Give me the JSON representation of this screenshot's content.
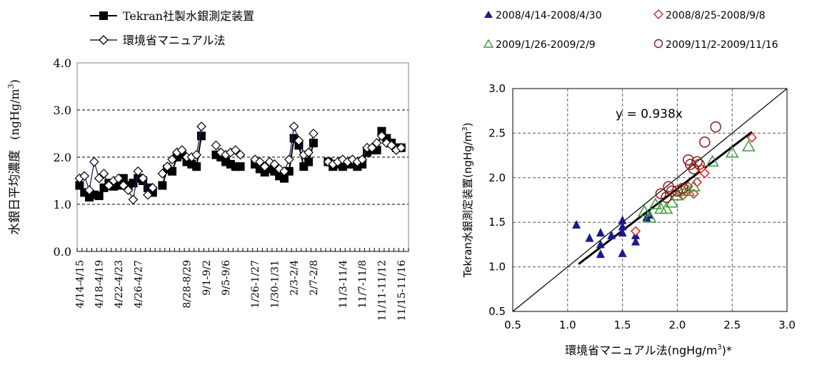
{
  "chart_data": [
    {
      "type": "line",
      "ylabel": "水銀日平均濃度",
      "ylabel_unit": "(ngHg/m",
      "ylabel_unit_sup": "3",
      "ylabel_unit_close": ")",
      "ylim": [
        0,
        4
      ],
      "yticks": [
        "0.0",
        "1.0",
        "2.0",
        "3.0",
        "4.0"
      ],
      "xtick_labels": [
        "4/14-4/15",
        "4/18-4/19",
        "4/22-4/23",
        "4/26-4/27",
        "8/28-8/29",
        "9/1-9/2",
        "9/5-9/6",
        "1/26-1/27",
        "1/30-1/31",
        "2/3-2/4",
        "2/7-2/8",
        "11/3-11/4",
        "11/7-11/8",
        "11/11-11/12",
        "11/15-11/16"
      ],
      "xtick_positions": [
        0,
        4,
        8,
        12,
        22,
        26,
        30,
        36,
        40,
        44,
        48,
        54,
        58,
        62,
        66
      ],
      "n_slots": 68,
      "grid": "horizontal dashed",
      "legend_position": "top",
      "series": [
        {
          "name": "Tekran社製水銀測定装置",
          "color": "#000000",
          "marker": "filled-square",
          "segments": [
            [
              [
                0,
                1.4
              ],
              [
                1,
                1.25
              ],
              [
                2,
                1.15
              ],
              [
                3,
                1.2
              ],
              [
                4,
                1.18
              ],
              [
                5,
                1.35
              ],
              [
                6,
                1.45
              ],
              [
                7,
                1.38
              ],
              [
                8,
                1.4
              ],
              [
                9,
                1.55
              ],
              [
                10,
                1.4
              ],
              [
                11,
                1.45
              ],
              [
                12,
                1.55
              ],
              [
                13,
                1.5
              ],
              [
                14,
                1.35
              ],
              [
                15,
                1.25
              ]
            ],
            [
              [
                17,
                1.4
              ],
              [
                18,
                1.75
              ],
              [
                19,
                1.7
              ],
              [
                20,
                2.0
              ],
              [
                21,
                2.05
              ],
              [
                22,
                1.9
              ],
              [
                23,
                1.85
              ],
              [
                24,
                1.8
              ],
              [
                25,
                2.45
              ]
            ],
            [
              [
                28,
                2.05
              ],
              [
                29,
                2.0
              ],
              [
                30,
                1.9
              ],
              [
                31,
                1.85
              ],
              [
                32,
                1.8
              ],
              [
                33,
                1.8
              ]
            ],
            [
              [
                36,
                1.85
              ],
              [
                37,
                1.75
              ],
              [
                38,
                1.68
              ],
              [
                39,
                1.75
              ],
              [
                40,
                1.7
              ],
              [
                41,
                1.6
              ],
              [
                42,
                1.55
              ],
              [
                43,
                1.7
              ],
              [
                44,
                2.4
              ],
              [
                45,
                2.25
              ],
              [
                46,
                1.8
              ],
              [
                47,
                1.9
              ],
              [
                48,
                2.3
              ]
            ],
            [
              [
                51,
                1.9
              ],
              [
                52,
                1.8
              ],
              [
                53,
                1.85
              ],
              [
                54,
                1.8
              ],
              [
                55,
                1.85
              ],
              [
                56,
                1.85
              ],
              [
                57,
                1.8
              ],
              [
                58,
                1.85
              ],
              [
                59,
                2.1
              ],
              [
                60,
                2.15
              ],
              [
                61,
                2.15
              ],
              [
                62,
                2.55
              ],
              [
                63,
                2.4
              ],
              [
                64,
                2.3
              ],
              [
                65,
                2.2
              ],
              [
                66,
                2.2
              ]
            ]
          ]
        },
        {
          "name": "環境省マニュアル法",
          "color": "#1f1f7a",
          "marker": "open-diamond",
          "segments": [
            [
              [
                0,
                1.55
              ],
              [
                1,
                1.6
              ],
              [
                2,
                1.3
              ],
              [
                3,
                1.9
              ],
              [
                4,
                1.55
              ],
              [
                5,
                1.65
              ],
              [
                6,
                1.4
              ],
              [
                7,
                1.5
              ],
              [
                8,
                1.55
              ],
              [
                9,
                1.4
              ],
              [
                10,
                1.3
              ],
              [
                11,
                1.1
              ],
              [
                12,
                1.7
              ],
              [
                13,
                1.55
              ],
              [
                14,
                1.2
              ],
              [
                15,
                1.35
              ]
            ],
            [
              [
                17,
                1.65
              ],
              [
                18,
                1.8
              ],
              [
                19,
                1.95
              ],
              [
                20,
                2.1
              ],
              [
                21,
                2.15
              ],
              [
                22,
                2.0
              ],
              [
                23,
                2.0
              ],
              [
                24,
                2.05
              ],
              [
                25,
                2.65
              ]
            ],
            [
              [
                28,
                2.25
              ],
              [
                29,
                2.1
              ],
              [
                30,
                2.05
              ],
              [
                31,
                2.1
              ],
              [
                32,
                2.15
              ],
              [
                33,
                2.05
              ]
            ],
            [
              [
                36,
                1.95
              ],
              [
                37,
                1.9
              ],
              [
                38,
                1.8
              ],
              [
                39,
                1.9
              ],
              [
                40,
                1.85
              ],
              [
                41,
                1.75
              ],
              [
                42,
                1.7
              ],
              [
                43,
                1.95
              ],
              [
                44,
                2.65
              ],
              [
                45,
                2.35
              ],
              [
                46,
                2.05
              ],
              [
                47,
                2.1
              ],
              [
                48,
                2.5
              ]
            ],
            [
              [
                51,
                1.9
              ],
              [
                52,
                1.85
              ],
              [
                53,
                1.9
              ],
              [
                54,
                1.95
              ],
              [
                55,
                1.9
              ],
              [
                56,
                1.95
              ],
              [
                57,
                1.9
              ],
              [
                58,
                1.95
              ],
              [
                59,
                2.2
              ],
              [
                60,
                2.2
              ],
              [
                61,
                2.3
              ],
              [
                62,
                2.45
              ],
              [
                63,
                2.3
              ],
              [
                64,
                2.25
              ],
              [
                65,
                2.15
              ],
              [
                66,
                2.2
              ]
            ]
          ]
        }
      ]
    },
    {
      "type": "scatter",
      "xlabel": "環境省マニュアル法(ngHg/m",
      "xlabel_sup": "3",
      "xlabel_close": ")*",
      "ylabel": "Tekran水銀測定装置(ngHg/m",
      "ylabel_sup": "3",
      "ylabel_close": ")",
      "xlim": [
        0.5,
        3.0
      ],
      "ylim": [
        0.5,
        3.0
      ],
      "xticks": [
        "0.5",
        "1.0",
        "1.5",
        "2.0",
        "2.5",
        "3.0"
      ],
      "yticks": [
        "0.5",
        "1.0",
        "1.5",
        "2.0",
        "2.5",
        "3.0"
      ],
      "annotation": "y = 0.938x",
      "regression_slope": 0.938,
      "regression_x_range": [
        1.1,
        2.68
      ],
      "identity_line": true,
      "grid": "dashed",
      "legend_position": "top",
      "series": [
        {
          "name": "2008/4/14-2008/4/30",
          "color": "#1a1a8c",
          "marker": "filled-triangle",
          "points": [
            [
              1.08,
              1.47
            ],
            [
              1.2,
              1.32
            ],
            [
              1.3,
              1.38
            ],
            [
              1.3,
              1.25
            ],
            [
              1.3,
              1.14
            ],
            [
              1.4,
              1.35
            ],
            [
              1.5,
              1.52
            ],
            [
              1.5,
              1.45
            ],
            [
              1.5,
              1.38
            ],
            [
              1.5,
              1.15
            ],
            [
              1.62,
              1.35
            ],
            [
              1.62,
              1.28
            ],
            [
              1.75,
              1.58
            ],
            [
              1.72,
              1.55
            ]
          ]
        },
        {
          "name": "2008/8/25-2008/9/8",
          "color": "#e02020",
          "marker": "open-diamond",
          "points": [
            [
              1.62,
              1.4
            ],
            [
              2.05,
              1.8
            ],
            [
              2.08,
              1.85
            ],
            [
              2.1,
              1.9
            ],
            [
              2.15,
              1.82
            ],
            [
              2.18,
              1.95
            ],
            [
              2.22,
              2.1
            ],
            [
              2.25,
              2.05
            ],
            [
              2.68,
              2.45
            ]
          ]
        },
        {
          "name": "2009/1/26-2009/2/9",
          "color": "#3a9a3a",
          "marker": "open-triangle",
          "points": [
            [
              1.7,
              1.62
            ],
            [
              1.75,
              1.55
            ],
            [
              1.8,
              1.7
            ],
            [
              1.85,
              1.65
            ],
            [
              1.9,
              1.65
            ],
            [
              1.95,
              1.72
            ],
            [
              2.0,
              1.8
            ],
            [
              2.05,
              1.85
            ],
            [
              2.1,
              1.85
            ],
            [
              2.15,
              1.9
            ],
            [
              2.32,
              2.18
            ],
            [
              2.5,
              2.28
            ],
            [
              2.65,
              2.35
            ]
          ]
        },
        {
          "name": "2009/11/2-2009/11/16",
          "color": "#8b1a1a",
          "marker": "open-circle",
          "points": [
            [
              1.85,
              1.82
            ],
            [
              1.9,
              1.78
            ],
            [
              1.92,
              1.9
            ],
            [
              1.95,
              1.85
            ],
            [
              2.0,
              1.85
            ],
            [
              2.05,
              1.88
            ],
            [
              2.1,
              2.2
            ],
            [
              2.12,
              2.15
            ],
            [
              2.15,
              2.1
            ],
            [
              2.18,
              2.18
            ],
            [
              2.2,
              2.15
            ],
            [
              2.25,
              2.4
            ],
            [
              2.35,
              2.57
            ]
          ]
        }
      ]
    }
  ]
}
